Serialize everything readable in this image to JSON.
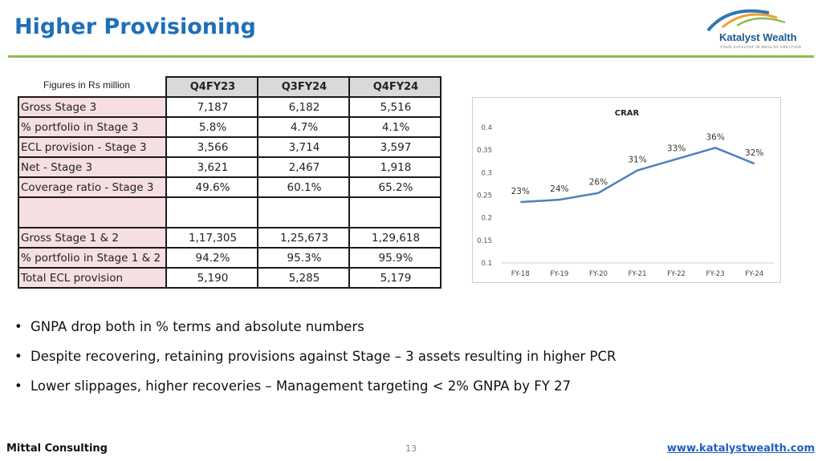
{
  "slide": {
    "title": "Higher Provisioning",
    "page_number": "13"
  },
  "logo": {
    "name": "Katalyst Wealth",
    "tagline": "YOUR CATALYST IN WEALTH CREATION",
    "colors": {
      "arc_blue": "#2b78b5",
      "arc_orange": "#f0a030",
      "arc_green": "#8dbb4f"
    }
  },
  "table": {
    "note": "Figures in Rs million",
    "headers": [
      "Q4FY23",
      "Q3FY24",
      "Q4FY24"
    ],
    "rows": [
      {
        "label": "Gross Stage 3",
        "values": [
          "7,187",
          "6,182",
          "5,516"
        ]
      },
      {
        "label": "% portfolio in Stage 3",
        "values": [
          "5.8%",
          "4.7%",
          "4.1%"
        ]
      },
      {
        "label": "ECL provision - Stage 3",
        "values": [
          "3,566",
          "3,714",
          "3,597"
        ]
      },
      {
        "label": "Net - Stage 3",
        "values": [
          "3,621",
          "2,467",
          "1,918"
        ]
      },
      {
        "label": "Coverage ratio - Stage 3",
        "values": [
          "49.6%",
          "60.1%",
          "65.2%"
        ]
      },
      {
        "label": "",
        "values": [
          "",
          "",
          ""
        ]
      },
      {
        "label": "Gross Stage 1 & 2",
        "values": [
          "1,17,305",
          "1,25,673",
          "1,29,618"
        ]
      },
      {
        "label": "% portfolio in Stage 1 & 2",
        "values": [
          "94.2%",
          "95.3%",
          "95.9%"
        ]
      },
      {
        "label": "Total ECL provision",
        "values": [
          "5,190",
          "5,285",
          "5,179"
        ]
      }
    ]
  },
  "chart_data": {
    "type": "line",
    "title": "CRAR",
    "categories": [
      "FY-18",
      "FY-19",
      "FY-20",
      "FY-21",
      "FY-22",
      "FY-23",
      "FY-24"
    ],
    "values": [
      0.235,
      0.24,
      0.255,
      0.305,
      0.33,
      0.355,
      0.32
    ],
    "data_labels": [
      "23%",
      "24%",
      "26%",
      "31%",
      "33%",
      "36%",
      "32%"
    ],
    "ylim": [
      0.1,
      0.4
    ],
    "yticks": [
      "0.1",
      "0.15",
      "0.2",
      "0.25",
      "0.3",
      "0.35",
      "0.4"
    ],
    "grid": false,
    "line_color": "#4f7fbf"
  },
  "bullets": [
    "GNPA drop both in % terms and absolute numbers",
    "Despite recovering, retaining provisions against Stage – 3 assets resulting in higher PCR",
    "Lower slippages, higher recoveries – Management targeting < 2% GNPA by FY 27"
  ],
  "footer": {
    "left": "Mittal Consulting",
    "url": "www.katalystwealth.com"
  }
}
